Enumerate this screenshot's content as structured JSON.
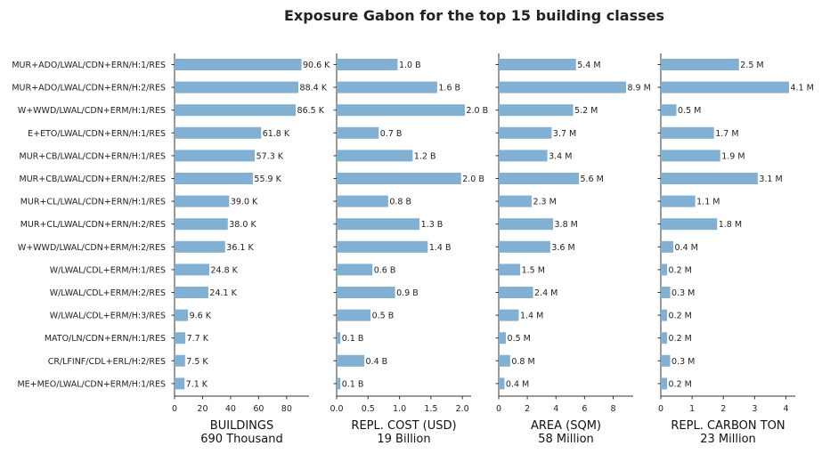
{
  "title": "Exposure Gabon for the top 15 building classes",
  "chart_data": {
    "type": "bar",
    "orientation": "horizontal",
    "title": "Exposure Gabon for the top 15 building classes",
    "bar_color": "#82b0d3",
    "categories": [
      "MUR+ADO/LWAL/CDN+ERN/H:1/RES",
      "MUR+ADO/LWAL/CDN+ERN/H:2/RES",
      "W+WWD/LWAL/CDN+ERM/H:1/RES",
      "E+ETO/LWAL/CDN+ERN/H:1/RES",
      "MUR+CB/LWAL/CDN+ERN/H:1/RES",
      "MUR+CB/LWAL/CDN+ERN/H:2/RES",
      "MUR+CL/LWAL/CDN+ERN/H:1/RES",
      "MUR+CL/LWAL/CDN+ERN/H:2/RES",
      "W+WWD/LWAL/CDN+ERM/H:2/RES",
      "W/LWAL/CDL+ERM/H:1/RES",
      "W/LWAL/CDL+ERM/H:2/RES",
      "W/LWAL/CDL+ERM/H:3/RES",
      "MATO/LN/CDN+ERN/H:1/RES",
      "CR/LFINF/CDL+ERL/H:2/RES",
      "ME+MEO/LWAL/CDN+ERM/H:1/RES"
    ],
    "panels": [
      {
        "xlabel": "BUILDINGS",
        "total": "690 Thousand",
        "xlim": [
          0,
          96
        ],
        "ticks": [
          0,
          20,
          40,
          60,
          80
        ],
        "tick_labels": [
          "0",
          "20",
          "40",
          "60",
          "80"
        ],
        "values": [
          90.6,
          88.4,
          86.5,
          61.8,
          57.3,
          55.9,
          39.0,
          38.0,
          36.1,
          24.8,
          24.1,
          9.6,
          7.7,
          7.5,
          7.1
        ],
        "labels": [
          "90.6 K",
          "88.4 K",
          "86.5 K",
          "61.8 K",
          "57.3 K",
          "55.9 K",
          "39.0 K",
          "38.0 K",
          "36.1 K",
          "24.8 K",
          "24.1 K",
          "9.6 K",
          "7.7 K",
          "7.5 K",
          "7.1 K"
        ]
      },
      {
        "xlabel": "REPL. COST (USD)",
        "total": "19 Billion",
        "xlim": [
          0,
          2.14
        ],
        "ticks": [
          0,
          0.5,
          1.0,
          1.5,
          2.0
        ],
        "tick_labels": [
          "0.0",
          "0.5",
          "1.0",
          "1.5",
          "2.0"
        ],
        "values": [
          0.97,
          1.6,
          2.04,
          0.67,
          1.21,
          1.98,
          0.82,
          1.32,
          1.45,
          0.57,
          0.93,
          0.54,
          0.06,
          0.44,
          0.06
        ],
        "labels": [
          "1.0 B",
          "1.6 B",
          "2.0 B",
          "0.7 B",
          "1.2 B",
          "2.0 B",
          "0.8 B",
          "1.3 B",
          "1.4 B",
          "0.6 B",
          "0.9 B",
          "0.5 B",
          "0.1 B",
          "0.4 B",
          "0.1 B"
        ]
      },
      {
        "xlabel": "AREA (SQM)",
        "total": "58 Million",
        "xlim": [
          0,
          9.4
        ],
        "ticks": [
          0,
          2,
          4,
          6,
          8
        ],
        "tick_labels": [
          "0",
          "2",
          "4",
          "6",
          "8"
        ],
        "values": [
          5.4,
          8.9,
          5.2,
          3.7,
          3.4,
          5.6,
          2.3,
          3.8,
          3.6,
          1.5,
          2.4,
          1.4,
          0.5,
          0.8,
          0.4
        ],
        "labels": [
          "5.4 M",
          "8.9 M",
          "5.2 M",
          "3.7 M",
          "3.4 M",
          "5.6 M",
          "2.3 M",
          "3.8 M",
          "3.6 M",
          "1.5 M",
          "2.4 M",
          "1.4 M",
          "0.5 M",
          "0.8 M",
          "0.4 M"
        ]
      },
      {
        "xlabel": "REPL. CARBON TON",
        "total": "23 Million",
        "xlim": [
          0,
          4.3
        ],
        "ticks": [
          0,
          1,
          2,
          3,
          4
        ],
        "tick_labels": [
          "0",
          "1",
          "2",
          "3",
          "4"
        ],
        "values": [
          2.5,
          4.1,
          0.5,
          1.7,
          1.9,
          3.1,
          1.1,
          1.8,
          0.4,
          0.2,
          0.3,
          0.2,
          0.2,
          0.3,
          0.2
        ],
        "labels": [
          "2.5 M",
          "4.1 M",
          "0.5 M",
          "1.7 M",
          "1.9 M",
          "3.1 M",
          "1.1 M",
          "1.8 M",
          "0.4 M",
          "0.2 M",
          "0.3 M",
          "0.2 M",
          "0.2 M",
          "0.3 M",
          "0.2 M"
        ]
      }
    ]
  }
}
